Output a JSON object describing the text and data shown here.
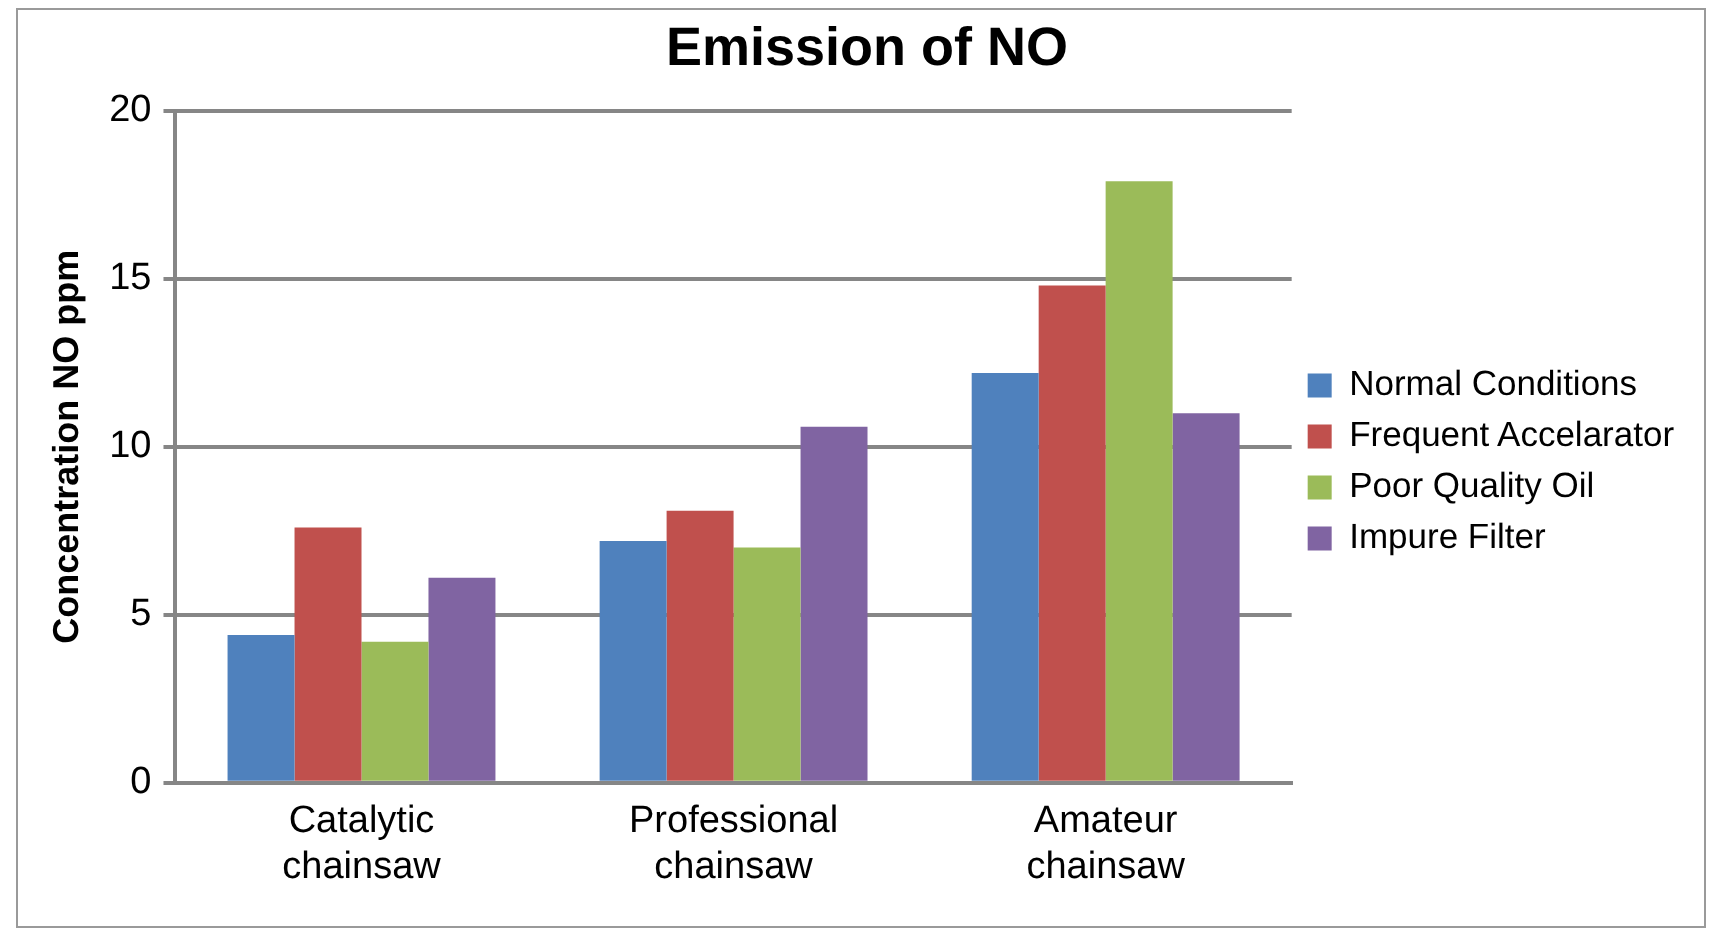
{
  "chart_data": {
    "type": "bar",
    "title": "Emission of NO",
    "ylabel": "Concentration NO ppm",
    "categories": [
      "Catalytic chainsaw",
      "Professional chainsaw",
      "Amateur chainsaw"
    ],
    "series": [
      {
        "name": "Normal Conditions",
        "color": "#4f81bd",
        "values": [
          4.4,
          7.2,
          12.2
        ]
      },
      {
        "name": "Frequent Accelarator",
        "color": "#c0504d",
        "values": [
          7.6,
          8.1,
          14.8
        ]
      },
      {
        "name": "Poor Quality Oil",
        "color": "#9bbb59",
        "values": [
          4.2,
          7.0,
          17.9
        ]
      },
      {
        "name": "Impure Filter",
        "color": "#8064a2",
        "values": [
          6.1,
          10.6,
          11.0
        ]
      }
    ],
    "ylim": [
      0,
      20
    ],
    "yticks": [
      0,
      5,
      10,
      15,
      20
    ],
    "grid": "y",
    "legend": "right"
  }
}
